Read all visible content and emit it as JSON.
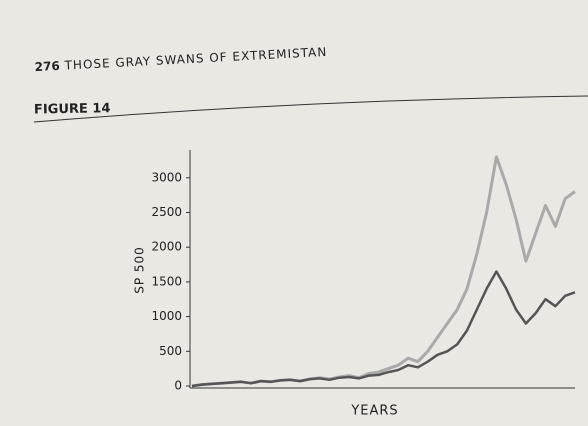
{
  "header": {
    "page_number": "276",
    "running_title": "THOSE GRAY SWANS OF EXTREMISTAN"
  },
  "figure_label": "FIGURE 14",
  "chart_data": {
    "type": "line",
    "y_label": "SP 500",
    "x_label": "YEARS",
    "ylim": [
      0,
      3400
    ],
    "yticks": [
      0,
      500,
      1000,
      1500,
      2000,
      2500,
      3000
    ],
    "series": [
      {
        "color": "#a9a9a9",
        "values": [
          0,
          20,
          30,
          40,
          50,
          60,
          40,
          70,
          60,
          80,
          90,
          70,
          100,
          120,
          100,
          130,
          150,
          120,
          180,
          200,
          250,
          300,
          400,
          350,
          500,
          700,
          900,
          1100,
          1400,
          1900,
          2500,
          3300,
          2900,
          2400,
          1800,
          2200,
          2600,
          2300,
          2700,
          2800
        ]
      },
      {
        "color": "#555555",
        "values": [
          0,
          20,
          30,
          40,
          50,
          60,
          40,
          70,
          60,
          80,
          90,
          70,
          100,
          110,
          90,
          120,
          130,
          110,
          150,
          160,
          200,
          230,
          300,
          270,
          350,
          450,
          500,
          600,
          800,
          1100,
          1400,
          1650,
          1400,
          1100,
          900,
          1050,
          1250,
          1150,
          1300,
          1350
        ]
      }
    ]
  }
}
